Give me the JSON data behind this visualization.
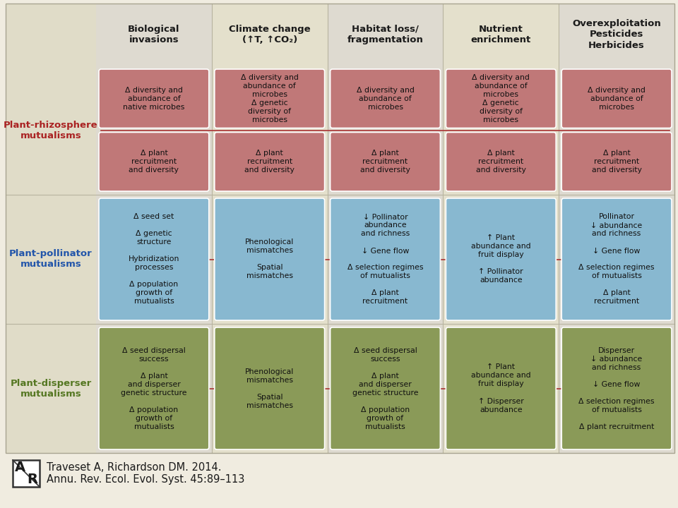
{
  "bg_color": "#f0ece0",
  "grid_bg_color": "#e0dcc8",
  "box_color_row0": "#c07878",
  "box_color_row1": "#88b8d0",
  "box_color_row2": "#8a9a58",
  "box_inner_border": "#c07878",
  "row_label_color_0": "#aa2222",
  "row_label_color_1": "#2255aa",
  "row_label_color_2": "#557722",
  "connector_color": "#aa3333",
  "text_color": "#1a1a1a",
  "header_text_color": "#1a1a1a",
  "col_headers": [
    "Biological\ninvasions",
    "Climate change\n(↑T, ↑CO₂)",
    "Habitat loss/\nfragmentation",
    "Nutrient\nenrichment",
    "Overexploitation\nPesticides\nHerbicides"
  ],
  "row_labels": [
    "Plant-rhizosphere\nmutualisms",
    "Plant-pollinator\nmutualisms",
    "Plant-disperser\nmutualisms"
  ],
  "cells": {
    "r0c0_top": "Δ diversity and\nabundance of\nnative microbes",
    "r0c0_bot": "Δ plant\nrecruitment\nand diversity",
    "r0c1_top": "Δ diversity and\nabundance of\nmicrobes\nΔ genetic\ndiversity of\nmicrobes",
    "r0c1_bot": "Δ plant\nrecruitment\nand diversity",
    "r0c2_top": "Δ diversity and\nabundance of\nmicrobes",
    "r0c2_bot": "Δ plant\nrecruitment\nand diversity",
    "r0c3_top": "Δ diversity and\nabundance of\nmicrobes\nΔ genetic\ndiversity of\nmicrobes",
    "r0c3_bot": "Δ plant\nrecruitment\nand diversity",
    "r0c4_top": "Δ diversity and\nabundance of\nmicrobes",
    "r0c4_bot": "Δ plant\nrecruitment\nand diversity",
    "r1c0": "Δ seed set\n\nΔ genetic\nstructure\n\nHybridization\nprocesses\n\nΔ population\ngrowth of\nmutualists",
    "r1c1": "Phenological\nmismatches\n\nSpatial\nmismatches",
    "r1c2": "↓ Pollinator\nabundance\nand richness\n\n↓ Gene flow\n\nΔ selection regimes\nof mutualists\n\nΔ plant\nrecruitment",
    "r1c3": "↑ Plant\nabundance and\nfruit display\n\n↑ Pollinator\nabundance",
    "r1c4": "Pollinator\n↓ abundance\nand richness\n\n↓ Gene flow\n\nΔ selection regimes\nof mutualists\n\nΔ plant\nrecruitment",
    "r2c0": "Δ seed dispersal\nsuccess\n\nΔ plant\nand disperser\ngenetic structure\n\nΔ population\ngrowth of\nmutualists",
    "r2c1": "Phenological\nmismatches\n\nSpatial\nmismatches",
    "r2c2": "Δ seed dispersal\nsuccess\n\nΔ plant\nand disperser\ngenetic structure\n\nΔ population\ngrowth of\nmutualists",
    "r2c3": "↑ Plant\nabundance and\nfruit display\n\n↑ Disperser\nabundance",
    "r2c4": "Disperser\n↓ abundance\nand richness\n\n↓ Gene flow\n\nΔ selection regimes\nof mutualists\n\nΔ plant recruitment"
  }
}
